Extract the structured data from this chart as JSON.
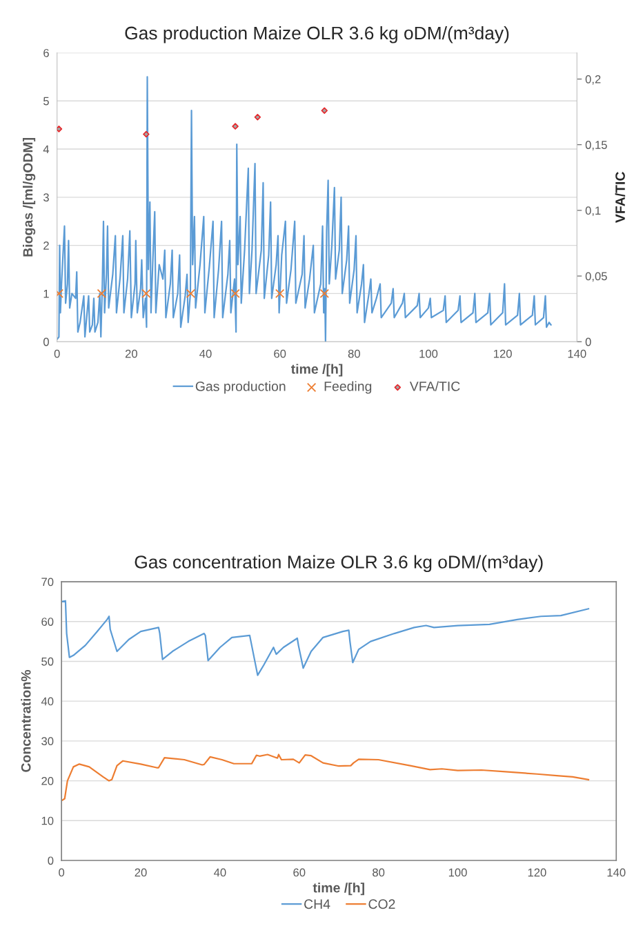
{
  "chart_data": [
    {
      "type": "line",
      "title": "Gas production Maize OLR 3.6 kg oDM/(m³day)",
      "xlabel": "time /[h]",
      "ylabel": "Biogas /[ml/gODM]",
      "y2label": "VFA/TIC",
      "xlim": [
        0,
        140
      ],
      "xticks": [
        0,
        20,
        40,
        60,
        80,
        100,
        120,
        140
      ],
      "ylim": [
        0,
        6
      ],
      "yticks": [
        0,
        1,
        2,
        3,
        4,
        5,
        6
      ],
      "y2lim": [
        0,
        0.22
      ],
      "y2ticks": [
        0,
        {
          "value": 0.05,
          "label": "0,05"
        },
        {
          "value": 0.1,
          "label": "0,1"
        },
        {
          "value": 0.15,
          "label": "0,15"
        },
        {
          "value": 0.2,
          "label": "0,2"
        }
      ],
      "grid": "y",
      "legend": "bottom",
      "series": [
        {
          "name": "Gas production",
          "type": "line",
          "color": "#5b9bd5",
          "marker": "none",
          "x": [
            0,
            0.5,
            0.7,
            0.9,
            1.2,
            2.0,
            2.3,
            2.8,
            3.1,
            3.4,
            4,
            5,
            5.3,
            5.6,
            6.2,
            7.2,
            7.5,
            8.5,
            8.8,
            9.5,
            9.9,
            10.2,
            11,
            11.5,
            11.8,
            12.2,
            12.5,
            12.8,
            13.3,
            13.6,
            13.9,
            15,
            15.7,
            16,
            17,
            17.7,
            18,
            19,
            19.6,
            20,
            21,
            21.2,
            21.6,
            22.5,
            22.8,
            23.2,
            23.8,
            24.1,
            24.3,
            24.6,
            25,
            25.3,
            25.8,
            26.3,
            26.6,
            27.5,
            28.5,
            29,
            29.3,
            30.5,
            31,
            31.3,
            32.5,
            33,
            33.3,
            34.5,
            35,
            35.3,
            35.9,
            36.2,
            36.5,
            37,
            37.3,
            38.5,
            39.5,
            39.8,
            41,
            42,
            42.3,
            43.5,
            44.3,
            44.6,
            46,
            46.5,
            46.8,
            47.8,
            48.2,
            48.4,
            48.7,
            49.3,
            49.6,
            50.5,
            51.5,
            51.8,
            52.5,
            53.3,
            53.6,
            55,
            55.5,
            55.8,
            57,
            57.5,
            57.8,
            59,
            59.5,
            59.8,
            60.5,
            61.5,
            61.8,
            63,
            64,
            64.3,
            66,
            66.5,
            66.8,
            68,
            69,
            69.3,
            71,
            71.5,
            71.8,
            72.1,
            72.3,
            72.6,
            73,
            73.3,
            74,
            74.7,
            75,
            76,
            76.5,
            76.8,
            78,
            78.5,
            78.8,
            80,
            80.5,
            80.8,
            82,
            82.5,
            82.8,
            84,
            84.5,
            84.8,
            86,
            87,
            87.3,
            90,
            90.5,
            90.8,
            93,
            93.5,
            93.8,
            97,
            97.5,
            97.8,
            100,
            100.5,
            100.8,
            104,
            104.5,
            104.8,
            108,
            108.5,
            108.8,
            112,
            112.5,
            112.8,
            116,
            116.5,
            116.8,
            120,
            120.5,
            120.8,
            124,
            124.5,
            124.8,
            128,
            128.5,
            128.8,
            131,
            131.5,
            131.8,
            132.5,
            133
          ],
          "values": [
            0.05,
            0.1,
            2.0,
            0.6,
            1.2,
            2.4,
            0.8,
            1.2,
            2.1,
            0.7,
            1.0,
            0.9,
            1.45,
            0.2,
            0.4,
            0.95,
            0.1,
            0.95,
            0.2,
            0.35,
            0.9,
            0.2,
            0.4,
            1.0,
            0.1,
            1.2,
            2.5,
            0.6,
            1.4,
            2.4,
            0.7,
            1.4,
            2.2,
            0.6,
            1.35,
            2.2,
            0.6,
            1.3,
            2.3,
            0.5,
            1.2,
            2.1,
            0.6,
            1.1,
            1.7,
            0.5,
            0.9,
            0.3,
            5.5,
            1.5,
            2.9,
            0.6,
            1.7,
            2.7,
            0.6,
            1.6,
            1.3,
            1.9,
            0.5,
            1.2,
            1.9,
            0.5,
            1.0,
            1.8,
            0.3,
            0.95,
            1.4,
            0.4,
            1.0,
            4.8,
            1.6,
            2.6,
            0.7,
            1.6,
            2.6,
            0.6,
            1.55,
            2.5,
            0.5,
            1.5,
            2.5,
            0.5,
            1.4,
            2.1,
            0.6,
            1.3,
            0.2,
            4.1,
            1.6,
            2.6,
            0.8,
            1.9,
            3.6,
            1.0,
            1.9,
            3.7,
            1.0,
            1.9,
            3.3,
            0.9,
            1.8,
            2.9,
            0.9,
            1.6,
            2.2,
            0.6,
            1.8,
            2.5,
            0.8,
            1.5,
            2.5,
            0.8,
            1.4,
            2.2,
            0.7,
            1.3,
            2.0,
            0.6,
            1.2,
            2.4,
            0.6,
            1.1,
            0,
            2.3,
            3.35,
            1.2,
            2.0,
            3.2,
            1.3,
            1.9,
            3.0,
            1.0,
            1.7,
            2.4,
            0.8,
            1.5,
            2.2,
            0.6,
            1.2,
            1.6,
            0.4,
            1.0,
            1.3,
            0.6,
            0.9,
            1.2,
            0.5,
            0.8,
            1.1,
            0.5,
            0.8,
            1.0,
            0.5,
            0.75,
            1.0,
            0.5,
            0.7,
            0.9,
            0.5,
            0.65,
            0.95,
            0.4,
            0.65,
            0.95,
            0.4,
            0.6,
            1.0,
            0.4,
            0.6,
            1.0,
            0.35,
            0.6,
            1.2,
            0.35,
            0.55,
            1.0,
            0.35,
            0.55,
            0.95,
            0.35,
            0.5,
            0.95,
            0.3,
            0.4,
            0.35
          ]
        },
        {
          "name": "Feeding",
          "type": "scatter",
          "color": "#ed7d31",
          "marker": "cross",
          "x": [
            0.5,
            12,
            24,
            36,
            48,
            60,
            72
          ],
          "values": [
            1,
            1,
            1,
            1,
            1,
            1,
            1
          ]
        },
        {
          "name": "VFA/TIC",
          "type": "scatter",
          "color": "#e8262a",
          "marker": "diamond",
          "axis": "y2",
          "x": [
            0.5,
            24,
            48,
            54,
            72
          ],
          "values": [
            0.162,
            0.158,
            0.164,
            0.171,
            0.176
          ]
        }
      ]
    },
    {
      "type": "line",
      "title": "Gas concentration Maize OLR 3.6 kg oDM/(m³day)",
      "xlabel": "time /[h]",
      "ylabel": "Concentration%",
      "xlim": [
        0,
        140
      ],
      "xticks": [
        0,
        20,
        40,
        60,
        80,
        100,
        120,
        140
      ],
      "ylim": [
        0,
        70
      ],
      "yticks": [
        0,
        10,
        20,
        30,
        40,
        50,
        60,
        70
      ],
      "grid": "y",
      "legend": "bottom",
      "series": [
        {
          "name": "CH4",
          "color": "#5b9bd5",
          "x": [
            0,
            1,
            1.3,
            2,
            3,
            6,
            9,
            11.5,
            12,
            12.3,
            14,
            17,
            20,
            24.5,
            24.8,
            25.5,
            28,
            32,
            36,
            36.3,
            37,
            40,
            43,
            47.5,
            47.8,
            49.5,
            51,
            53.5,
            54.2,
            56,
            59.5,
            59.8,
            61,
            63,
            66,
            71,
            72.5,
            72.8,
            73.5,
            75,
            78,
            84,
            89,
            92,
            94,
            100,
            108,
            115,
            121,
            126,
            133
          ],
          "values": [
            65,
            65.2,
            57,
            51,
            51.5,
            54,
            57.5,
            60.5,
            61.3,
            58,
            52.5,
            55.5,
            57.5,
            58.5,
            57,
            50.5,
            52.5,
            55,
            57,
            56.5,
            50.2,
            53.5,
            56,
            56.5,
            55,
            46.5,
            49,
            53.5,
            51.8,
            53.5,
            55.8,
            54,
            48.3,
            52.5,
            56,
            57.5,
            57.8,
            55,
            49.7,
            53,
            55,
            57,
            58.5,
            59,
            58.5,
            59,
            59.3,
            60.5,
            61.3,
            61.5,
            63.2
          ]
        },
        {
          "name": "CO2",
          "color": "#ed7d31",
          "x": [
            0,
            0.8,
            1.5,
            3,
            4.5,
            7,
            10.5,
            12,
            12.7,
            14,
            15.5,
            20,
            24,
            24.5,
            26,
            31,
            35.5,
            36,
            37.5,
            40.5,
            43.5,
            48,
            49.2,
            50,
            52,
            54.5,
            54.8,
            55.5,
            58.5,
            60,
            61.5,
            63,
            66,
            70,
            73,
            73.7,
            75,
            80,
            88,
            93,
            96,
            100,
            106,
            112,
            120,
            125,
            129,
            133
          ],
          "values": [
            15,
            15.5,
            20,
            23.5,
            24.2,
            23.5,
            21,
            20,
            20.3,
            23.8,
            25,
            24.2,
            23.3,
            23.3,
            25.8,
            25.3,
            24,
            24.1,
            26,
            25.3,
            24.3,
            24.3,
            26.4,
            26.2,
            26.6,
            25.7,
            26.6,
            25.3,
            25.4,
            24.5,
            26.5,
            26.3,
            24.5,
            23.7,
            23.8,
            24.5,
            25.4,
            25.3,
            23.8,
            22.8,
            23,
            22.6,
            22.7,
            22.3,
            21.7,
            21.3,
            21,
            20.3
          ]
        }
      ]
    }
  ]
}
